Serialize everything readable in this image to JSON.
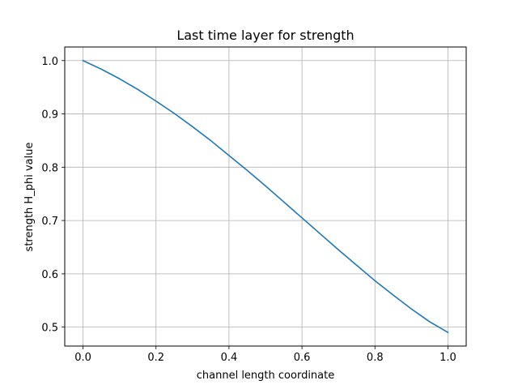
{
  "chart_data": {
    "type": "line",
    "title": "Last time layer for strength",
    "xlabel": "channel length coordinate",
    "ylabel": "strength H_phi value",
    "xlim": [
      -0.05,
      1.05
    ],
    "ylim": [
      0.4645,
      1.0255
    ],
    "x_ticks": [
      0.0,
      0.2,
      0.4,
      0.6,
      0.8,
      1.0
    ],
    "x_tick_labels": [
      "0.0",
      "0.2",
      "0.4",
      "0.6",
      "0.8",
      "1.0"
    ],
    "y_ticks": [
      0.5,
      0.6,
      0.7,
      0.8,
      0.9,
      1.0
    ],
    "y_tick_labels": [
      "0.5",
      "0.6",
      "0.7",
      "0.8",
      "0.9",
      "1.0"
    ],
    "grid": true,
    "legend": "none",
    "series": [
      {
        "color": "#1f77b4",
        "x": [
          0.0,
          0.05,
          0.1,
          0.15,
          0.2,
          0.25,
          0.3,
          0.35,
          0.4,
          0.45,
          0.5,
          0.55,
          0.6,
          0.65,
          0.7,
          0.75,
          0.8,
          0.85,
          0.9,
          0.95,
          1.0
        ],
        "y": [
          1.0,
          0.984,
          0.966,
          0.946,
          0.924,
          0.901,
          0.876,
          0.85,
          0.822,
          0.794,
          0.765,
          0.735,
          0.705,
          0.675,
          0.645,
          0.616,
          0.587,
          0.56,
          0.534,
          0.51,
          0.49
        ]
      }
    ]
  }
}
